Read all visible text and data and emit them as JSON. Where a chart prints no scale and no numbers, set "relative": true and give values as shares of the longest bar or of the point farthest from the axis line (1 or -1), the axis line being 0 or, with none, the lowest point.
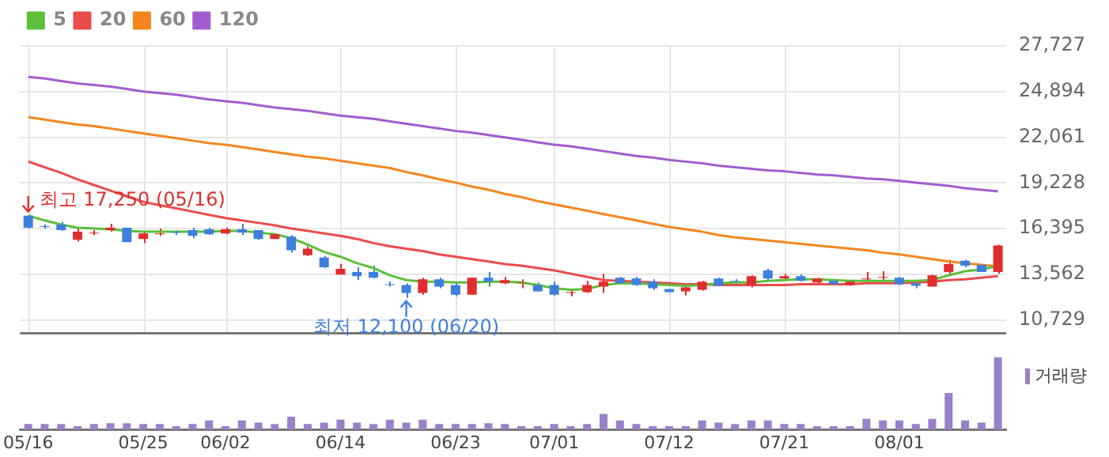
{
  "chart_data": [
    {
      "type": "candlestick",
      "categories": [
        "05/16",
        null,
        null,
        null,
        null,
        null,
        null,
        "05/25",
        null,
        null,
        null,
        null,
        "06/02",
        null,
        null,
        null,
        null,
        null,
        null,
        "06/14",
        null,
        null,
        null,
        null,
        null,
        null,
        "06/23",
        null,
        null,
        null,
        null,
        null,
        "07/01",
        null,
        null,
        null,
        null,
        null,
        null,
        "07/12",
        null,
        null,
        null,
        null,
        null,
        null,
        "07/21",
        null,
        null,
        null,
        null,
        null,
        null,
        "08/01",
        null,
        null,
        null,
        null,
        null,
        null
      ],
      "ohlc": [
        [
          17200,
          17250,
          16400,
          16450
        ],
        [
          16550,
          16650,
          16400,
          16500
        ],
        [
          16650,
          16800,
          16250,
          16300
        ],
        [
          15700,
          16400,
          15600,
          16200
        ],
        [
          16100,
          16300,
          16000,
          16150
        ],
        [
          16300,
          16700,
          16200,
          16450
        ],
        [
          16450,
          16450,
          15550,
          15550
        ],
        [
          15750,
          16250,
          15500,
          16100
        ],
        [
          16050,
          16400,
          15950,
          16100
        ],
        [
          16200,
          16300,
          16000,
          16150
        ],
        [
          16300,
          16450,
          15800,
          15950
        ],
        [
          16350,
          16450,
          16000,
          16050
        ],
        [
          16100,
          16450,
          16050,
          16350
        ],
        [
          16350,
          16700,
          16000,
          16150
        ],
        [
          16300,
          16300,
          15700,
          15750
        ],
        [
          15750,
          16050,
          15750,
          16050
        ],
        [
          15900,
          16000,
          14900,
          15050
        ],
        [
          14750,
          15300,
          14700,
          15150
        ],
        [
          14600,
          14700,
          13950,
          14000
        ],
        [
          13550,
          14200,
          13550,
          13900
        ],
        [
          13700,
          14000,
          13200,
          13450
        ],
        [
          13700,
          14100,
          13300,
          13350
        ],
        [
          12950,
          13100,
          12800,
          12900
        ],
        [
          12900,
          13000,
          12100,
          12400
        ],
        [
          12400,
          13350,
          12300,
          13250
        ],
        [
          13250,
          13350,
          12700,
          12800
        ],
        [
          12900,
          13100,
          12200,
          12300
        ],
        [
          12300,
          13350,
          12300,
          13350
        ],
        [
          13350,
          13700,
          12800,
          13100
        ],
        [
          13000,
          13400,
          12950,
          13200
        ],
        [
          13000,
          13250,
          12700,
          13050
        ],
        [
          12900,
          13050,
          12500,
          12500
        ],
        [
          12900,
          13100,
          12250,
          12300
        ],
        [
          12400,
          12550,
          12200,
          12450
        ],
        [
          12450,
          13150,
          12400,
          12900
        ],
        [
          12800,
          13600,
          12400,
          13100
        ],
        [
          13350,
          13400,
          12950,
          13000
        ],
        [
          13300,
          13400,
          12850,
          12900
        ],
        [
          13100,
          13250,
          12600,
          12700
        ],
        [
          12650,
          12650,
          12450,
          12450
        ],
        [
          12500,
          12900,
          12250,
          12750
        ],
        [
          12600,
          13150,
          12550,
          13100
        ],
        [
          13300,
          13350,
          12850,
          12850
        ],
        [
          13150,
          13250,
          12950,
          13100
        ],
        [
          12900,
          13500,
          12750,
          13450
        ],
        [
          13800,
          13900,
          13200,
          13300
        ],
        [
          13300,
          13600,
          13200,
          13450
        ],
        [
          13450,
          13550,
          13100,
          13150
        ],
        [
          13050,
          13350,
          12950,
          13300
        ],
        [
          13150,
          13200,
          12900,
          12950
        ],
        [
          12900,
          13150,
          12850,
          13100
        ],
        [
          13250,
          13700,
          12950,
          13300
        ],
        [
          13350,
          13750,
          13200,
          13400
        ],
        [
          13350,
          13400,
          12900,
          12950
        ],
        [
          13000,
          13000,
          12700,
          12850
        ],
        [
          12800,
          13550,
          12800,
          13500
        ],
        [
          13700,
          14450,
          13550,
          14200
        ],
        [
          14400,
          14450,
          14000,
          14100
        ],
        [
          14150,
          14150,
          13700,
          13700
        ],
        [
          13700,
          15400,
          13600,
          15350
        ]
      ],
      "colors": [
        "#3d7fdd",
        "#3d7fdd",
        "#3d7fdd",
        "#e02d2d",
        "#e02d2d",
        "#e02d2d",
        "#3d7fdd",
        "#e02d2d",
        "#e02d2d",
        "#3d7fdd",
        "#3d7fdd",
        "#3d7fdd",
        "#e02d2d",
        "#3d7fdd",
        "#3d7fdd",
        "#e02d2d",
        "#3d7fdd",
        "#e02d2d",
        "#3d7fdd",
        "#e02d2d",
        "#3d7fdd",
        "#3d7fdd",
        "#3d7fdd",
        "#3d7fdd",
        "#e02d2d",
        "#3d7fdd",
        "#3d7fdd",
        "#e02d2d",
        "#3d7fdd",
        "#e02d2d",
        "#e02d2d",
        "#3d7fdd",
        "#3d7fdd",
        "#e02d2d",
        "#e02d2d",
        "#e02d2d",
        "#3d7fdd",
        "#3d7fdd",
        "#3d7fdd",
        "#3d7fdd",
        "#e02d2d",
        "#e02d2d",
        "#3d7fdd",
        "#3d7fdd",
        "#e02d2d",
        "#3d7fdd",
        "#e02d2d",
        "#3d7fdd",
        "#e02d2d",
        "#3d7fdd",
        "#e02d2d",
        "#e02d2d",
        "#e02d2d",
        "#3d7fdd",
        "#3d7fdd",
        "#e02d2d",
        "#e02d2d",
        "#3d7fdd",
        "#3d7fdd",
        "#e02d2d"
      ],
      "series": [
        {
          "name": "5",
          "type": "line",
          "color": "#5cbf3a",
          "values": [
            17200,
            16900,
            16650,
            16450,
            16400,
            16350,
            16250,
            16200,
            16200,
            16200,
            16200,
            16200,
            16250,
            16250,
            16150,
            16050,
            15800,
            15400,
            14950,
            14650,
            14250,
            13950,
            13500,
            13200,
            13100,
            13100,
            13050,
            13050,
            13100,
            13100,
            13050,
            12900,
            12700,
            12600,
            12650,
            12900,
            13000,
            13000,
            12950,
            12900,
            12850,
            12900,
            13000,
            13050,
            13050,
            13150,
            13200,
            13250,
            13250,
            13200,
            13150,
            13150,
            13150,
            13150,
            13150,
            13200,
            13500,
            13750,
            13850,
            14100
          ]
        },
        {
          "name": "20",
          "type": "line",
          "color": "#ea4b4b",
          "values": [
            20550,
            20200,
            19850,
            19450,
            19100,
            18750,
            18400,
            18050,
            17850,
            17650,
            17450,
            17250,
            17050,
            16900,
            16750,
            16600,
            16400,
            16250,
            16100,
            15950,
            15750,
            15500,
            15300,
            15150,
            15000,
            14800,
            14650,
            14500,
            14350,
            14200,
            14100,
            13950,
            13800,
            13600,
            13400,
            13200,
            13150,
            13100,
            13050,
            13000,
            12950,
            12950,
            12900,
            12900,
            12900,
            12900,
            12900,
            12950,
            12950,
            12950,
            12950,
            13000,
            13000,
            13000,
            13050,
            13100,
            13200,
            13250,
            13350,
            13450
          ]
        },
        {
          "name": "60",
          "type": "line",
          "color": "#f5861f",
          "values": [
            23300,
            23150,
            23000,
            22850,
            22750,
            22600,
            22450,
            22300,
            22150,
            22000,
            21850,
            21700,
            21600,
            21450,
            21300,
            21150,
            21000,
            20850,
            20750,
            20600,
            20450,
            20300,
            20150,
            19900,
            19700,
            19450,
            19250,
            19000,
            18800,
            18550,
            18350,
            18100,
            17900,
            17700,
            17500,
            17300,
            17100,
            16900,
            16700,
            16500,
            16350,
            16200,
            16000,
            15850,
            15750,
            15650,
            15550,
            15450,
            15350,
            15250,
            15150,
            15050,
            14900,
            14800,
            14650,
            14500,
            14350,
            14250,
            14150,
            14050
          ]
        },
        {
          "name": "120",
          "type": "line",
          "color": "#a15dd0",
          "values": [
            25800,
            25700,
            25550,
            25400,
            25300,
            25200,
            25050,
            24900,
            24800,
            24700,
            24550,
            24400,
            24300,
            24200,
            24050,
            23900,
            23800,
            23700,
            23550,
            23400,
            23300,
            23200,
            23050,
            22900,
            22750,
            22600,
            22450,
            22350,
            22200,
            22050,
            21900,
            21750,
            21600,
            21500,
            21350,
            21200,
            21050,
            20900,
            20800,
            20650,
            20550,
            20450,
            20300,
            20200,
            20100,
            20000,
            19950,
            19850,
            19750,
            19700,
            19600,
            19500,
            19450,
            19350,
            19250,
            19150,
            19050,
            18900,
            18800,
            18700
          ]
        }
      ],
      "ylim": [
        9900,
        27727
      ],
      "yticks": [
        {
          "value": 10729,
          "label": "10,729"
        },
        {
          "value": 13562,
          "label": "13,562"
        },
        {
          "value": 16395,
          "label": "16,395"
        },
        {
          "value": 19228,
          "label": "19,228"
        },
        {
          "value": 22061,
          "label": "22,061"
        },
        {
          "value": 24894,
          "label": "24,894"
        },
        {
          "value": 27727,
          "label": "27,727"
        }
      ],
      "grid": true,
      "legend": "top left",
      "tick_labels": "y",
      "annotations": [
        {
          "text": "최고 17,250 (05/16)",
          "x": "05/16",
          "y": 17250
        },
        {
          "text": "최저 12,100 (06/20)",
          "y": 12100
        }
      ]
    },
    {
      "type": "bar",
      "categories": [
        "05/16",
        null,
        null,
        null,
        null,
        null,
        null,
        "05/25",
        null,
        null,
        null,
        null,
        "06/02",
        null,
        null,
        null,
        null,
        null,
        null,
        "06/14",
        null,
        null,
        null,
        null,
        null,
        null,
        "06/23",
        null,
        null,
        null,
        null,
        null,
        "07/01",
        null,
        null,
        null,
        null,
        null,
        null,
        "07/12",
        null,
        null,
        null,
        null,
        null,
        null,
        "07/21",
        null,
        null,
        null,
        null,
        null,
        null,
        "08/01",
        null,
        null,
        null,
        null,
        null,
        null
      ],
      "series": [
        {
          "name": "거래량",
          "color": "#9a80c8",
          "values": [
            0.08,
            0.08,
            0.08,
            0.05,
            0.08,
            0.09,
            0.09,
            0.08,
            0.08,
            0.05,
            0.08,
            0.13,
            0.05,
            0.13,
            0.1,
            0.08,
            0.18,
            0.08,
            0.1,
            0.14,
            0.1,
            0.08,
            0.14,
            0.1,
            0.14,
            0.08,
            0.08,
            0.08,
            0.09,
            0.08,
            0.05,
            0.05,
            0.08,
            0.05,
            0.08,
            0.22,
            0.13,
            0.08,
            0.05,
            0.05,
            0.05,
            0.13,
            0.1,
            0.08,
            0.13,
            0.13,
            0.08,
            0.08,
            0.05,
            0.05,
            0.05,
            0.15,
            0.13,
            0.13,
            0.08,
            0.15,
            0.51,
            0.13,
            0.1,
            1
          ]
        }
      ],
      "relative": true,
      "legend": "top right",
      "tick_labels": "x"
    }
  ]
}
